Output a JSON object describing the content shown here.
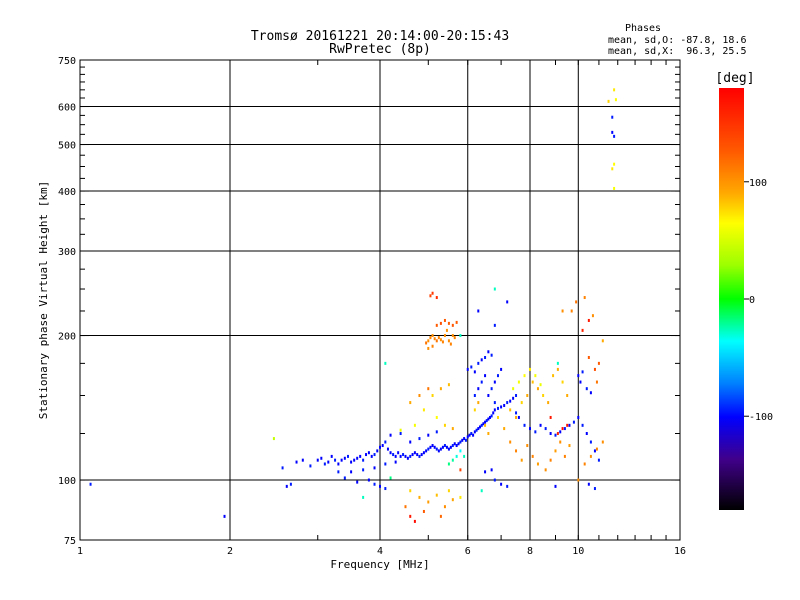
{
  "chart_data": {
    "type": "scatter",
    "title": "Tromsø 20161221 20:14:00-20:15:43",
    "subtitle": "RwPretec (8p)",
    "xlabel": "Frequency [MHz]",
    "ylabel": "Stationary phase Virtual Height [km]",
    "x_scale": "log",
    "y_scale": "log",
    "xlim": [
      1,
      16
    ],
    "ylim": [
      75,
      750
    ],
    "x_ticks": [
      1,
      2,
      4,
      6,
      8,
      10,
      16
    ],
    "x_tick_labels": [
      "1",
      "2",
      "4",
      "6",
      "8",
      "10",
      "16"
    ],
    "y_ticks": [
      75,
      100,
      200,
      300,
      400,
      500,
      600,
      750
    ],
    "y_tick_labels": [
      "75",
      "100",
      "200",
      "300",
      "400",
      "500",
      "600",
      "750"
    ],
    "grid_x": [
      2,
      4,
      6,
      8,
      10
    ],
    "grid_y": [
      100,
      200,
      300,
      400,
      500,
      600
    ],
    "legend": {
      "title": "Phases",
      "line1": "mean, sd,O: -87.8, 18.6",
      "line2": "mean, sd,X:  96.3, 25.5"
    },
    "colorbar": {
      "label": "[deg]",
      "range": [
        -180,
        180
      ],
      "ticks": [
        100,
        0,
        -100
      ],
      "tick_labels": [
        "100",
        "0",
        "-100"
      ]
    },
    "points": [
      [
        1.05,
        98,
        -95
      ],
      [
        1.95,
        84,
        -100
      ],
      [
        2.45,
        122,
        60
      ],
      [
        2.55,
        106,
        -95
      ],
      [
        2.6,
        97,
        -100
      ],
      [
        2.65,
        98,
        -95
      ],
      [
        2.72,
        109,
        -100
      ],
      [
        2.8,
        110,
        -100
      ],
      [
        2.9,
        107,
        -95
      ],
      [
        3.0,
        110,
        -100
      ],
      [
        3.05,
        111,
        -100
      ],
      [
        3.1,
        108,
        -95
      ],
      [
        3.15,
        109,
        -100
      ],
      [
        3.2,
        112,
        -100
      ],
      [
        3.25,
        110,
        -95
      ],
      [
        3.3,
        108,
        -100
      ],
      [
        3.35,
        110,
        -100
      ],
      [
        3.4,
        111,
        -100
      ],
      [
        3.45,
        112,
        -95
      ],
      [
        3.5,
        109,
        -100
      ],
      [
        3.55,
        110,
        -100
      ],
      [
        3.6,
        111,
        -100
      ],
      [
        3.65,
        112,
        -100
      ],
      [
        3.7,
        110,
        -95
      ],
      [
        3.75,
        113,
        -100
      ],
      [
        3.8,
        114,
        -100
      ],
      [
        3.85,
        112,
        -100
      ],
      [
        3.9,
        113,
        -95
      ],
      [
        3.95,
        115,
        -100
      ],
      [
        4.0,
        117,
        -100
      ],
      [
        4.05,
        118,
        -100
      ],
      [
        4.1,
        120,
        -95
      ],
      [
        4.15,
        116,
        -100
      ],
      [
        4.2,
        114,
        -100
      ],
      [
        4.25,
        113,
        -95
      ],
      [
        4.3,
        112,
        -100
      ],
      [
        4.35,
        114,
        -100
      ],
      [
        4.4,
        112,
        -100
      ],
      [
        4.45,
        113,
        -95
      ],
      [
        4.5,
        112,
        -100
      ],
      [
        4.55,
        111,
        -100
      ],
      [
        4.6,
        112,
        -95
      ],
      [
        4.65,
        113,
        -100
      ],
      [
        4.7,
        114,
        -100
      ],
      [
        4.75,
        113,
        -100
      ],
      [
        4.8,
        112,
        -95
      ],
      [
        4.85,
        113,
        -100
      ],
      [
        4.9,
        114,
        -100
      ],
      [
        4.95,
        115,
        -100
      ],
      [
        5.0,
        116,
        -95
      ],
      [
        5.05,
        117,
        -100
      ],
      [
        5.1,
        118,
        -100
      ],
      [
        5.15,
        117,
        -100
      ],
      [
        5.2,
        116,
        -95
      ],
      [
        5.25,
        115,
        -100
      ],
      [
        5.3,
        116,
        -100
      ],
      [
        5.35,
        117,
        -100
      ],
      [
        5.4,
        118,
        -95
      ],
      [
        5.45,
        117,
        -100
      ],
      [
        5.5,
        116,
        -100
      ],
      [
        5.55,
        117,
        -100
      ],
      [
        5.6,
        118,
        -95
      ],
      [
        5.65,
        119,
        -100
      ],
      [
        5.7,
        118,
        -100
      ],
      [
        5.75,
        119,
        -100
      ],
      [
        5.8,
        120,
        -95
      ],
      [
        5.85,
        121,
        -100
      ],
      [
        5.9,
        122,
        -100
      ],
      [
        5.95,
        121,
        -95
      ],
      [
        6.0,
        123,
        -100
      ],
      [
        6.05,
        124,
        -100
      ],
      [
        6.1,
        125,
        -95
      ],
      [
        6.15,
        124,
        -100
      ],
      [
        6.2,
        126,
        -100
      ],
      [
        6.25,
        127,
        -95
      ],
      [
        6.3,
        128,
        -100
      ],
      [
        6.35,
        129,
        -100
      ],
      [
        6.4,
        130,
        -95
      ],
      [
        6.45,
        131,
        -100
      ],
      [
        6.5,
        132,
        -100
      ],
      [
        6.55,
        133,
        -95
      ],
      [
        6.6,
        134,
        -100
      ],
      [
        6.65,
        135,
        -100
      ],
      [
        6.7,
        136,
        -95
      ],
      [
        6.75,
        138,
        -100
      ],
      [
        6.8,
        140,
        -100
      ],
      [
        6.9,
        141,
        -95
      ],
      [
        7.0,
        142,
        -100
      ],
      [
        7.1,
        143,
        -100
      ],
      [
        7.2,
        145,
        -95
      ],
      [
        7.3,
        146,
        -100
      ],
      [
        7.4,
        148,
        -100
      ],
      [
        7.5,
        150,
        -95
      ],
      [
        3.3,
        104,
        -95
      ],
      [
        3.5,
        104,
        -100
      ],
      [
        3.7,
        105,
        -95
      ],
      [
        3.9,
        106,
        -100
      ],
      [
        4.1,
        108,
        -95
      ],
      [
        4.3,
        109,
        -100
      ],
      [
        3.8,
        100,
        -100
      ],
      [
        3.9,
        98,
        -95
      ],
      [
        4.0,
        97,
        -100
      ],
      [
        4.1,
        96,
        -95
      ],
      [
        3.6,
        99,
        -100
      ],
      [
        3.4,
        101,
        -95
      ],
      [
        4.2,
        124,
        -100
      ],
      [
        4.4,
        125,
        -95
      ],
      [
        4.6,
        120,
        -100
      ],
      [
        4.8,
        122,
        -95
      ],
      [
        5.0,
        124,
        -100
      ],
      [
        5.2,
        126,
        -95
      ],
      [
        6.0,
        170,
        -100
      ],
      [
        6.1,
        172,
        -95
      ],
      [
        6.2,
        168,
        -100
      ],
      [
        6.3,
        175,
        -95
      ],
      [
        6.4,
        178,
        -100
      ],
      [
        6.5,
        180,
        -95
      ],
      [
        6.6,
        185,
        -100
      ],
      [
        6.7,
        182,
        -95
      ],
      [
        6.5,
        165,
        -100
      ],
      [
        6.4,
        160,
        -95
      ],
      [
        6.3,
        155,
        -100
      ],
      [
        6.2,
        150,
        -95
      ],
      [
        6.6,
        150,
        -100
      ],
      [
        6.7,
        155,
        -95
      ],
      [
        6.8,
        160,
        -100
      ],
      [
        6.9,
        165,
        -95
      ],
      [
        7.0,
        170,
        -100
      ],
      [
        6.8,
        145,
        -95
      ],
      [
        7.2,
        235,
        -100
      ],
      [
        6.8,
        210,
        -95
      ],
      [
        6.3,
        225,
        -100
      ],
      [
        7.5,
        138,
        -95
      ],
      [
        7.6,
        135,
        -100
      ],
      [
        7.8,
        130,
        -95
      ],
      [
        8.0,
        128,
        -100
      ],
      [
        8.2,
        126,
        -95
      ],
      [
        8.4,
        130,
        -100
      ],
      [
        8.6,
        128,
        -95
      ],
      [
        8.8,
        125,
        -100
      ],
      [
        9.0,
        124,
        -95
      ],
      [
        9.2,
        126,
        -100
      ],
      [
        9.4,
        128,
        -95
      ],
      [
        9.6,
        130,
        -100
      ],
      [
        9.8,
        132,
        -95
      ],
      [
        10.0,
        135,
        -100
      ],
      [
        10.2,
        130,
        -95
      ],
      [
        10.4,
        125,
        -100
      ],
      [
        10.6,
        120,
        -95
      ],
      [
        10.8,
        115,
        -100
      ],
      [
        10.0,
        165,
        -100
      ],
      [
        10.2,
        168,
        -95
      ],
      [
        10.1,
        160,
        -100
      ],
      [
        10.4,
        155,
        -95
      ],
      [
        10.6,
        152,
        -100
      ],
      [
        11.0,
        110,
        -95
      ],
      [
        10.5,
        98,
        -100
      ],
      [
        10.8,
        96,
        -95
      ],
      [
        11.7,
        570,
        -95
      ],
      [
        11.7,
        530,
        -100
      ],
      [
        11.8,
        520,
        -95
      ],
      [
        6.7,
        105,
        -100
      ],
      [
        6.8,
        100,
        -95
      ],
      [
        7.0,
        98,
        -100
      ],
      [
        7.2,
        97,
        -95
      ],
      [
        6.5,
        104,
        -100
      ],
      [
        9.0,
        97,
        -100
      ],
      [
        5.8,
        115,
        -40
      ],
      [
        5.9,
        112,
        -30
      ],
      [
        5.5,
        108,
        -20
      ],
      [
        5.6,
        110,
        -25
      ],
      [
        5.7,
        112,
        -35
      ],
      [
        4.4,
        127,
        80
      ],
      [
        4.7,
        130,
        85
      ],
      [
        4.9,
        140,
        95
      ],
      [
        5.1,
        150,
        100
      ],
      [
        5.3,
        155,
        110
      ],
      [
        5.5,
        158,
        105
      ],
      [
        4.8,
        150,
        120
      ],
      [
        5.0,
        155,
        130
      ],
      [
        4.6,
        145,
        110
      ],
      [
        5.2,
        135,
        90
      ],
      [
        5.4,
        130,
        100
      ],
      [
        5.6,
        128,
        110
      ],
      [
        5.0,
        195,
        120
      ],
      [
        5.05,
        198,
        125
      ],
      [
        5.1,
        200,
        120
      ],
      [
        5.15,
        197,
        125
      ],
      [
        5.2,
        195,
        130
      ],
      [
        5.25,
        198,
        125
      ],
      [
        5.3,
        196,
        120
      ],
      [
        5.35,
        194,
        125
      ],
      [
        5.4,
        200,
        120
      ],
      [
        5.45,
        205,
        118
      ],
      [
        5.5,
        195,
        122
      ],
      [
        5.55,
        192,
        125
      ],
      [
        5.6,
        200,
        120
      ],
      [
        5.65,
        198,
        125
      ],
      [
        4.95,
        193,
        130
      ],
      [
        5.0,
        188,
        120
      ],
      [
        5.1,
        190,
        125
      ],
      [
        5.2,
        210,
        140
      ],
      [
        5.3,
        212,
        145
      ],
      [
        5.4,
        215,
        140
      ],
      [
        5.5,
        212,
        138
      ],
      [
        5.6,
        210,
        142
      ],
      [
        5.7,
        213,
        140
      ],
      [
        5.1,
        245,
        155
      ],
      [
        5.2,
        240,
        160
      ],
      [
        5.05,
        242,
        150
      ],
      [
        4.6,
        95,
        100
      ],
      [
        4.8,
        92,
        110
      ],
      [
        5.0,
        90,
        115
      ],
      [
        5.2,
        93,
        105
      ],
      [
        5.4,
        88,
        120
      ],
      [
        5.6,
        91,
        112
      ],
      [
        4.5,
        88,
        130
      ],
      [
        4.9,
        86,
        140
      ],
      [
        5.3,
        84,
        135
      ],
      [
        5.5,
        95,
        100
      ],
      [
        5.8,
        92,
        95
      ],
      [
        6.2,
        140,
        100
      ],
      [
        6.3,
        145,
        110
      ],
      [
        6.5,
        130,
        105
      ],
      [
        6.6,
        125,
        110
      ],
      [
        6.9,
        135,
        100
      ],
      [
        7.1,
        128,
        110
      ],
      [
        7.3,
        140,
        105
      ],
      [
        7.5,
        135,
        110
      ],
      [
        7.7,
        145,
        100
      ],
      [
        7.9,
        150,
        110
      ],
      [
        8.1,
        160,
        105
      ],
      [
        8.3,
        155,
        110
      ],
      [
        8.5,
        150,
        100
      ],
      [
        8.7,
        145,
        110
      ],
      [
        8.9,
        165,
        105
      ],
      [
        9.1,
        170,
        110
      ],
      [
        9.3,
        160,
        100
      ],
      [
        9.5,
        150,
        110
      ],
      [
        7.4,
        155,
        80
      ],
      [
        7.6,
        160,
        85
      ],
      [
        7.8,
        165,
        90
      ],
      [
        8.0,
        170,
        95
      ],
      [
        8.2,
        165,
        85
      ],
      [
        8.4,
        158,
        80
      ],
      [
        7.3,
        120,
        120
      ],
      [
        7.5,
        115,
        125
      ],
      [
        7.7,
        110,
        115
      ],
      [
        7.9,
        118,
        120
      ],
      [
        8.1,
        112,
        125
      ],
      [
        8.3,
        108,
        115
      ],
      [
        8.6,
        105,
        120
      ],
      [
        8.8,
        110,
        125
      ],
      [
        9.0,
        115,
        115
      ],
      [
        9.2,
        120,
        120
      ],
      [
        9.4,
        112,
        125
      ],
      [
        9.6,
        118,
        115
      ],
      [
        10.0,
        100,
        120
      ],
      [
        10.3,
        108,
        125
      ],
      [
        10.6,
        112,
        120
      ],
      [
        10.9,
        116,
        125
      ],
      [
        11.2,
        120,
        120
      ],
      [
        9.3,
        225,
        120
      ],
      [
        9.7,
        225,
        125
      ],
      [
        9.9,
        235,
        130
      ],
      [
        10.3,
        240,
        125
      ],
      [
        10.7,
        220,
        120
      ],
      [
        11.2,
        195,
        110
      ],
      [
        10.5,
        180,
        140
      ],
      [
        10.8,
        170,
        145
      ],
      [
        11.0,
        175,
        140
      ],
      [
        10.9,
        160,
        130
      ],
      [
        11.8,
        650,
        95
      ],
      [
        11.9,
        620,
        90
      ],
      [
        11.5,
        615,
        100
      ],
      [
        11.8,
        455,
        90
      ],
      [
        11.7,
        445,
        95
      ],
      [
        11.8,
        405,
        85
      ],
      [
        9.5,
        130,
        170
      ],
      [
        9.3,
        128,
        175
      ],
      [
        9.1,
        125,
        165
      ],
      [
        8.8,
        135,
        170
      ],
      [
        10.5,
        215,
        170
      ],
      [
        10.2,
        205,
        165
      ],
      [
        6.8,
        250,
        -30
      ],
      [
        5.8,
        200,
        -30
      ],
      [
        4.1,
        175,
        -30
      ],
      [
        6.4,
        95,
        -30
      ],
      [
        9.1,
        175,
        -30
      ],
      [
        3.7,
        92,
        -30
      ],
      [
        4.6,
        84,
        170
      ],
      [
        4.7,
        82,
        175
      ],
      [
        5.8,
        105,
        150
      ],
      [
        4.2,
        101,
        -20
      ]
    ]
  }
}
